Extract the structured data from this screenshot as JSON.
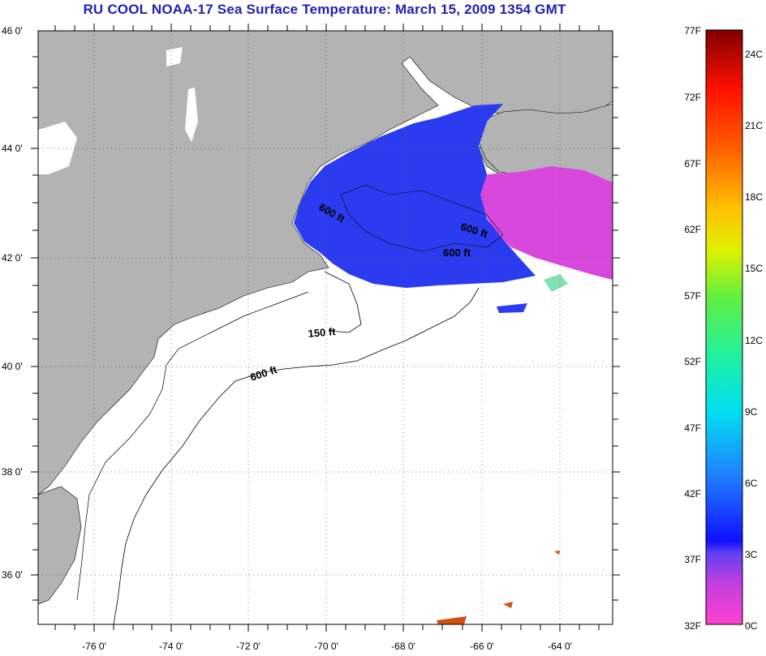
{
  "title": "RU COOL  NOAA-17  Sea Surface Temperature:  March 15, 2009 1354 GMT",
  "map": {
    "lat_labels": [
      "46 0'",
      "44 0'",
      "42 0'",
      "40 0'",
      "38 0'",
      "36 0'"
    ],
    "lon_labels": [
      "-76 0'",
      "-74 0'",
      "-72 0'",
      "-70 0'",
      "-68 0'",
      "-66 0'",
      "-64 0'"
    ],
    "contours": [
      "600 ft",
      "600 ft",
      "600 ft",
      "150 ft",
      "600 ft"
    ],
    "colors": {
      "land": "#b3b3b3",
      "water_nodata": "#ffffff",
      "sst_cold": "#2a3cf0",
      "sst_very_cold": "#e040e0"
    }
  },
  "colorbar": {
    "f_labels": [
      "77F",
      "72F",
      "67F",
      "62F",
      "57F",
      "52F",
      "47F",
      "42F",
      "37F",
      "32F"
    ],
    "c_labels": [
      "24C",
      "21C",
      "18C",
      "15C",
      "12C",
      "9C",
      "6C",
      "3C",
      "0C"
    ]
  }
}
